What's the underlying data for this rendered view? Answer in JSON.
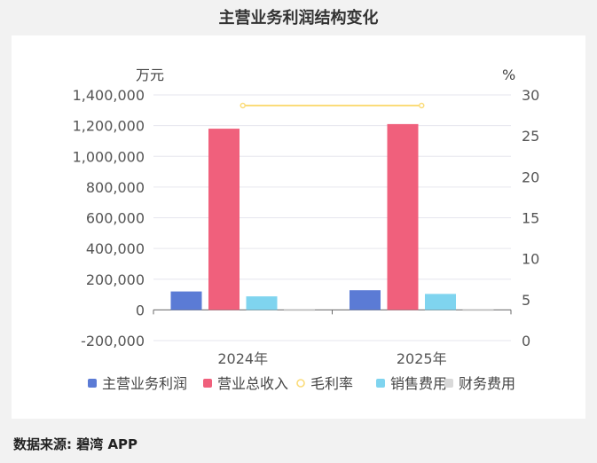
{
  "title": "主营业务利润结构变化",
  "source": "数据来源: 碧湾 APP",
  "colors": {
    "主营业务利润": "#5b7bd5",
    "营业总收入": "#f0607c",
    "毛利率": "#fbdc7a",
    "销售费用": "#7fd4ef",
    "财务费用": "#d9d9d9"
  },
  "chart_data": {
    "type": "bar",
    "categories": [
      "2024年",
      "2025年"
    ],
    "left_axis": {
      "unit": "万元",
      "ylim": [
        -200000,
        1400000
      ],
      "ticks": [
        -200000,
        0,
        200000,
        400000,
        600000,
        800000,
        1000000,
        1200000,
        1400000
      ],
      "tick_labels": [
        "-200,000",
        "0",
        "200,000",
        "400,000",
        "600,000",
        "800,000",
        "1,000,000",
        "1,200,000",
        "1,400,000"
      ]
    },
    "right_axis": {
      "unit": "%",
      "ylim": [
        0,
        30
      ],
      "ticks": [
        0,
        5,
        10,
        15,
        20,
        25,
        30
      ],
      "tick_labels": [
        "0",
        "5",
        "10",
        "15",
        "20",
        "25",
        "30"
      ]
    },
    "series": [
      {
        "name": "主营业务利润",
        "type": "bar",
        "axis": "left",
        "values": [
          120000,
          128000
        ]
      },
      {
        "name": "营业总收入",
        "type": "bar",
        "axis": "left",
        "values": [
          1180000,
          1210000
        ]
      },
      {
        "name": "毛利率",
        "type": "line",
        "axis": "right",
        "values": [
          28.7,
          28.7
        ]
      },
      {
        "name": "销售费用",
        "type": "bar",
        "axis": "left",
        "values": [
          88000,
          104000
        ]
      },
      {
        "name": "财务费用",
        "type": "bar",
        "axis": "left",
        "values": [
          -2000,
          -3000
        ]
      }
    ],
    "legend": [
      "主营业务利润",
      "营业总收入",
      "毛利率",
      "销售费用",
      "财务费用"
    ],
    "legend_position": "bottom",
    "grid": true
  }
}
